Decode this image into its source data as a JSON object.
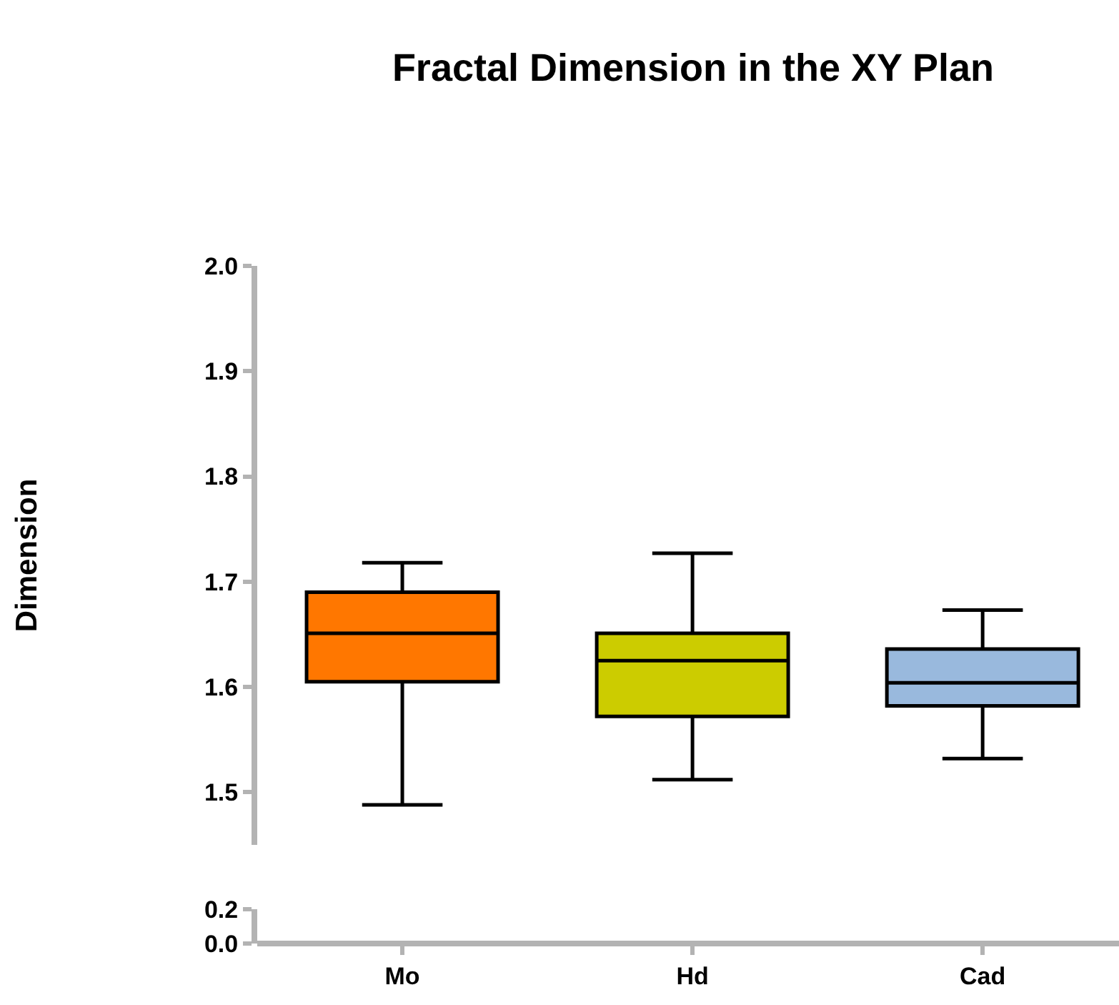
{
  "chart_data": [
    {
      "type": "box",
      "title": "Fractal Dimension in the XY Plan",
      "ylabel": "Dimension",
      "categories": [
        "Mo",
        "Hd",
        "Cad"
      ],
      "colors": [
        "#ff7700",
        "#cccc00",
        "#99b9dd"
      ],
      "boxes": [
        {
          "low": 1.488,
          "q1": 1.605,
          "median": 1.651,
          "q3": 1.69,
          "high": 1.718
        },
        {
          "low": 1.512,
          "q1": 1.572,
          "median": 1.625,
          "q3": 1.651,
          "high": 1.727
        },
        {
          "low": 1.532,
          "q1": 1.582,
          "median": 1.604,
          "q3": 1.636,
          "high": 1.673
        }
      ],
      "ylim": [
        1.45,
        2.0
      ],
      "yticks": [
        1.5,
        1.6,
        1.7,
        1.8,
        1.9,
        {
          "value": 2.0,
          "label": "2.0"
        }
      ]
    },
    {
      "type": "box",
      "categories": [
        null,
        null,
        null
      ],
      "tick_labels": "y",
      "ylim": [
        0,
        0.2
      ],
      "yticks": [
        {
          "value": 0,
          "label": "0.0"
        },
        {
          "value": 0.2,
          "label": "0.2"
        }
      ]
    }
  ]
}
